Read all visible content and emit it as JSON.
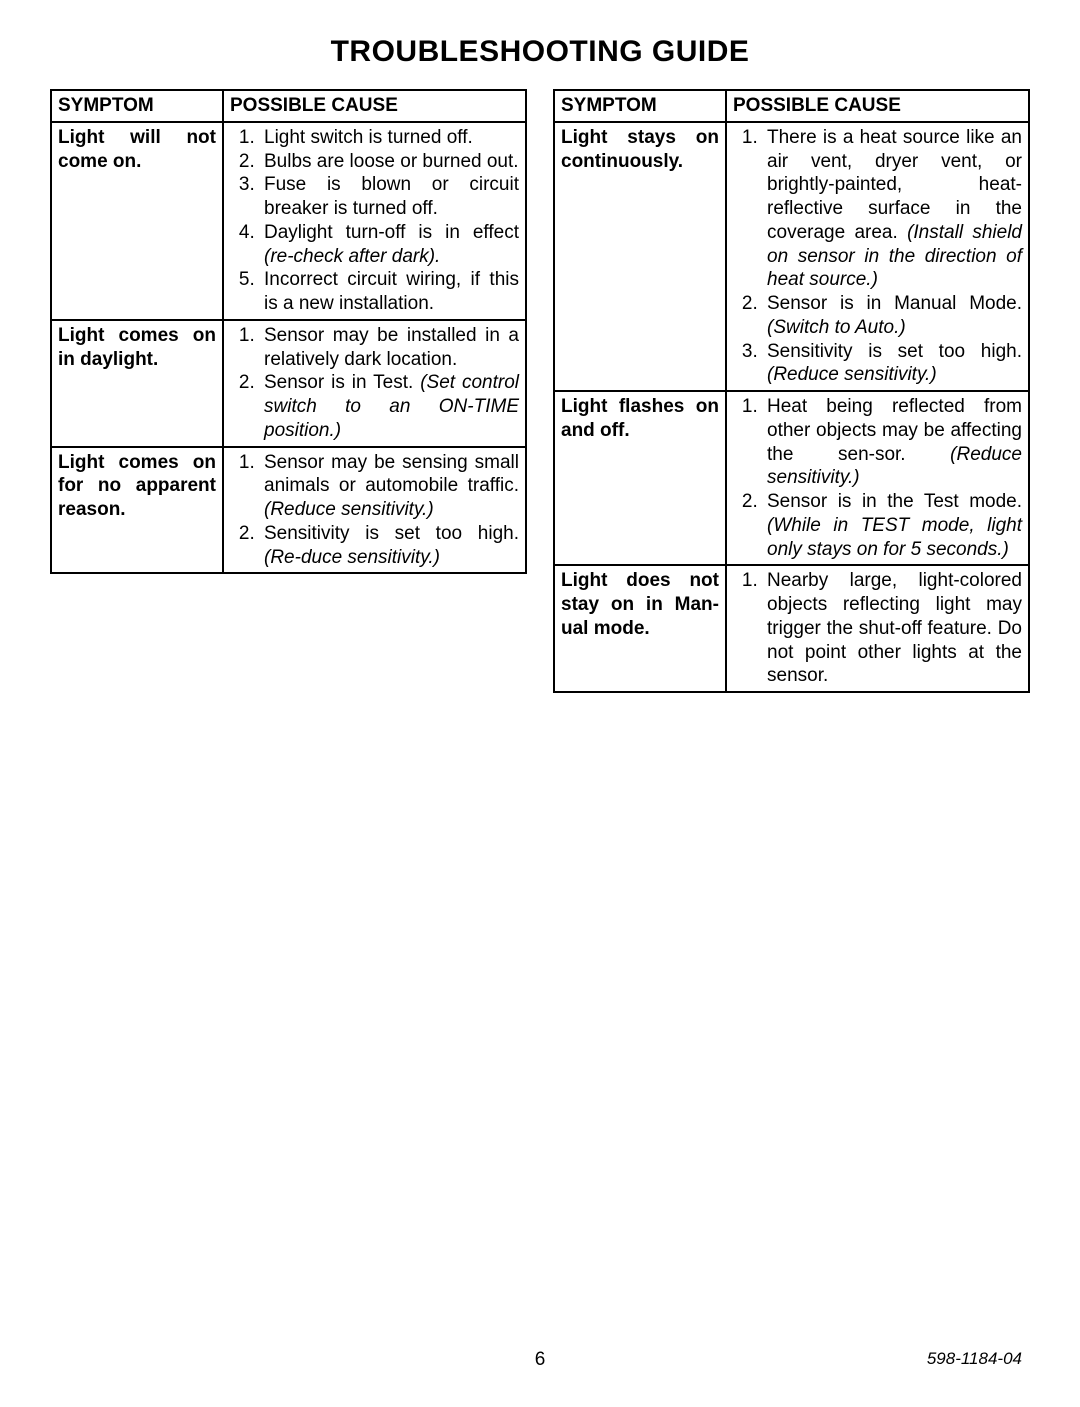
{
  "title": "TROUBLESHOOTING GUIDE",
  "headers": {
    "symptom": "SYMPTOM",
    "cause": "POSSIBLE CAUSE"
  },
  "left": [
    {
      "symptom_html": "Light will not come on.",
      "causes": [
        {
          "text": "Light switch is turned off."
        },
        {
          "text": "Bulbs are loose or burned out."
        },
        {
          "text": "Fuse is blown or circuit breaker is turned off."
        },
        {
          "text": "Daylight turn-off is in effect ",
          "ital": "(re-check after dark)."
        },
        {
          "text": "Incorrect circuit wiring, if this is a new installation."
        }
      ]
    },
    {
      "symptom_html": "Light comes on in daylight.",
      "causes": [
        {
          "text": "Sensor may be installed in a relatively dark location."
        },
        {
          "text": "Sensor is in Test. ",
          "ital": "(Set control switch to an ON-TIME position.)"
        }
      ]
    },
    {
      "symptom_html": "Light comes on for no apparent reason.",
      "causes": [
        {
          "text": "Sensor may be sensing small animals or automobile traffic. ",
          "ital": "(Reduce sensitivity.)"
        },
        {
          "text": "Sensitivity is set too high. ",
          "ital": "(Re-duce sensitivity.)"
        }
      ]
    }
  ],
  "right": [
    {
      "symptom_html": "Light stays on continuously.",
      "causes": [
        {
          "text": "There is a heat source like an air vent, dryer vent, or brightly-painted, heat-reflective surface in the coverage area. ",
          "ital": "(Install shield on sensor in the direction of heat source.)"
        },
        {
          "text": "Sensor is in Manual Mode. ",
          "ital": "(Switch to Auto.)"
        },
        {
          "text": "Sensitivity is set too high. ",
          "ital": "(Reduce sensitivity.)"
        }
      ]
    },
    {
      "symptom_html": "Light flashes on and off.",
      "causes": [
        {
          "text": "Heat being reflected from other objects may be affecting the sen-sor. ",
          "ital": "(Reduce sensitivity.)"
        },
        {
          "text": "Sensor is in the Test mode. ",
          "ital": "(While in TEST mode, light only stays on for 5 seconds.)"
        }
      ]
    },
    {
      "symptom_html": "Light does not stay on in Man-ual mode.",
      "causes": [
        {
          "text": "Nearby large, light-colored objects reflecting light may trigger the shut-off feature. Do not point other lights at the sensor."
        }
      ]
    }
  ],
  "footer": {
    "page": "6",
    "doc": "598-1184-04"
  }
}
